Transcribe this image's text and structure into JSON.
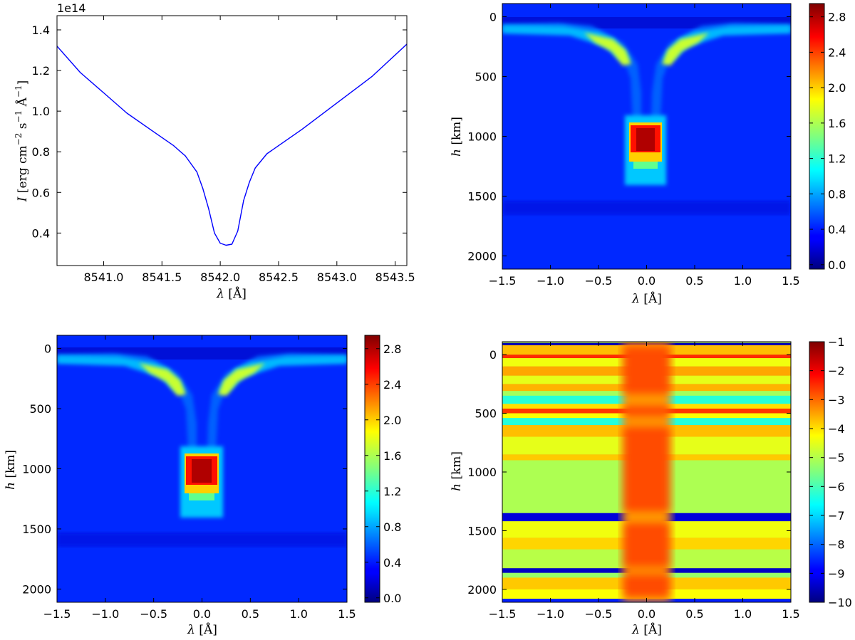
{
  "chart_data": [
    {
      "type": "line",
      "panel": "top-left",
      "title": "",
      "offset_label": "1e14",
      "xlabel": {
        "sym": "λ",
        "unit": " [Å]"
      },
      "ylabel": {
        "sym": "I",
        "pre": " [erg cm",
        "e1": "−2",
        "mid1": " s",
        "e2": "−1",
        "mid2": " Å",
        "e3": "−1",
        "post": "]"
      },
      "xlim": [
        8540.6,
        8543.6
      ],
      "ylim": [
        0.24,
        1.47
      ],
      "xticks": [
        "8541.0",
        "8541.5",
        "8542.0",
        "8542.5",
        "8543.0",
        "8543.5"
      ],
      "xtick_values": [
        8541.0,
        8541.5,
        8542.0,
        8542.5,
        8543.0,
        8543.5
      ],
      "yticks": [
        "0.4",
        "0.6",
        "0.8",
        "1.0",
        "1.2",
        "1.4"
      ],
      "ytick_values": [
        0.4,
        0.6,
        0.8,
        1.0,
        1.2,
        1.4
      ],
      "line_color": "#0000ff",
      "series": [
        {
          "name": "intensity",
          "x": [
            8540.6,
            8540.8,
            8541.0,
            8541.2,
            8541.4,
            8541.5,
            8541.6,
            8541.7,
            8541.8,
            8541.85,
            8541.9,
            8541.95,
            8542.0,
            8542.05,
            8542.1,
            8542.15,
            8542.2,
            8542.25,
            8542.3,
            8542.4,
            8542.5,
            8542.7,
            8543.0,
            8543.3,
            8543.6
          ],
          "y": [
            1.32,
            1.19,
            1.09,
            0.99,
            0.91,
            0.87,
            0.83,
            0.78,
            0.7,
            0.62,
            0.52,
            0.4,
            0.35,
            0.34,
            0.345,
            0.41,
            0.56,
            0.65,
            0.72,
            0.79,
            0.83,
            0.91,
            1.04,
            1.17,
            1.33
          ]
        }
      ]
    },
    {
      "type": "heatmap",
      "panel": "top-right",
      "xlabel": {
        "sym": "λ",
        "unit": " [Å]"
      },
      "ylabel": {
        "sym": "h",
        "unit": " [km]"
      },
      "xlim": [
        -1.5,
        1.5
      ],
      "ylim": [
        2110,
        -110
      ],
      "xticks": [
        "−1.5",
        "−1.0",
        "−0.5",
        "0.0",
        "0.5",
        "1.0",
        "1.5"
      ],
      "xtick_values": [
        -1.5,
        -1.0,
        -0.5,
        0.0,
        0.5,
        1.0,
        1.5
      ],
      "yticks": [
        "0",
        "500",
        "1000",
        "1500",
        "2000"
      ],
      "ytick_values": [
        0,
        500,
        1000,
        1500,
        2000
      ],
      "colorbar": {
        "min": -0.05,
        "max": 2.95,
        "ticks": [
          "0.0",
          "0.4",
          "0.8",
          "1.2",
          "1.6",
          "2.0",
          "2.4",
          "2.8"
        ],
        "tick_values": [
          0.0,
          0.4,
          0.8,
          1.2,
          1.6,
          2.0,
          2.4,
          2.8
        ]
      },
      "background_value": 0.25,
      "features": [
        {
          "name": "upper-band",
          "h": 70,
          "h_width": 35,
          "x_from": 0.15,
          "value": 0.8
        },
        {
          "name": "wings-left",
          "x_center": -0.45,
          "h": 220,
          "value": 1.5
        },
        {
          "name": "wings-right",
          "x_center": 0.45,
          "h": 220,
          "value": 1.5
        },
        {
          "name": "core-halo",
          "x": [
            -0.2,
            0.2
          ],
          "h": [
            820,
            1330
          ],
          "value": 1.2
        },
        {
          "name": "core-peak",
          "x": [
            -0.15,
            0.15
          ],
          "h": [
            900,
            1230
          ],
          "value": 2.85
        }
      ]
    },
    {
      "type": "heatmap",
      "panel": "bottom-left",
      "xlabel": {
        "sym": "λ",
        "unit": " [Å]"
      },
      "ylabel": {
        "sym": "h",
        "unit": " [km]"
      },
      "xlim": [
        -1.5,
        1.5
      ],
      "ylim": [
        2110,
        -110
      ],
      "xticks": [
        "−1.5",
        "−1.0",
        "−0.5",
        "0.0",
        "0.5",
        "1.0",
        "1.5"
      ],
      "xtick_values": [
        -1.5,
        -1.0,
        -0.5,
        0.0,
        0.5,
        1.0,
        1.5
      ],
      "yticks": [
        "0",
        "500",
        "1000",
        "1500",
        "2000"
      ],
      "ytick_values": [
        0,
        500,
        1000,
        1500,
        2000
      ],
      "colorbar": {
        "min": -0.05,
        "max": 2.95,
        "ticks": [
          "0.0",
          "0.4",
          "0.8",
          "1.2",
          "1.6",
          "2.0",
          "2.4",
          "2.8"
        ],
        "tick_values": [
          0.0,
          0.4,
          0.8,
          1.2,
          1.6,
          2.0,
          2.4,
          2.8
        ]
      },
      "background_value": 0.25
    },
    {
      "type": "heatmap",
      "panel": "bottom-right",
      "xlabel": {
        "sym": "λ",
        "unit": " [Å]"
      },
      "ylabel": {
        "sym": "h",
        "unit": " [km]"
      },
      "xlim": [
        -1.5,
        1.5
      ],
      "ylim": [
        2110,
        -110
      ],
      "xticks": [
        "−1.5",
        "−1.0",
        "−0.5",
        "0.0",
        "0.5",
        "1.0",
        "1.5"
      ],
      "xtick_values": [
        -1.5,
        -1.0,
        -0.5,
        0.0,
        0.5,
        1.0,
        1.5
      ],
      "yticks": [
        "0",
        "500",
        "1000",
        "1500",
        "2000"
      ],
      "ytick_values": [
        0,
        500,
        1000,
        1500,
        2000
      ],
      "colorbar": {
        "min": -10,
        "max": -1,
        "ticks": [
          "−1",
          "−2",
          "−3",
          "−4",
          "−5",
          "−6",
          "−7",
          "−8",
          "−9",
          "−10"
        ],
        "tick_values": [
          -1,
          -2,
          -3,
          -4,
          -5,
          -6,
          -7,
          -8,
          -9,
          -10
        ]
      },
      "background_value": -5.0,
      "core": {
        "x": [
          -0.25,
          0.25
        ],
        "value": -2.8
      },
      "bands": [
        {
          "h": [
            -100,
            -80
          ],
          "value": -9.5
        },
        {
          "h": [
            -80,
            0
          ],
          "value": -3.8
        },
        {
          "h": [
            0,
            30
          ],
          "value": -2.5
        },
        {
          "h": [
            30,
            100
          ],
          "value": -4.5
        },
        {
          "h": [
            100,
            180
          ],
          "value": -3.6
        },
        {
          "h": [
            180,
            250
          ],
          "value": -4.6
        },
        {
          "h": [
            250,
            310
          ],
          "value": -3.7
        },
        {
          "h": [
            310,
            350
          ],
          "value": -5.2
        },
        {
          "h": [
            350,
            420
          ],
          "value": -6.3
        },
        {
          "h": [
            420,
            460
          ],
          "value": -4.1
        },
        {
          "h": [
            460,
            500
          ],
          "value": -2.6
        },
        {
          "h": [
            500,
            540
          ],
          "value": -4.4
        },
        {
          "h": [
            540,
            600
          ],
          "value": -6.3
        },
        {
          "h": [
            600,
            700
          ],
          "value": -3.8
        },
        {
          "h": [
            700,
            850
          ],
          "value": -4.6
        },
        {
          "h": [
            850,
            900
          ],
          "value": -3.9
        },
        {
          "h": [
            900,
            1350
          ],
          "value": -5.1
        },
        {
          "h": [
            1350,
            1420
          ],
          "value": -9.2
        },
        {
          "h": [
            1420,
            1560
          ],
          "value": -4.5
        },
        {
          "h": [
            1560,
            1660
          ],
          "value": -4.0
        },
        {
          "h": [
            1660,
            1820
          ],
          "value": -5.0
        },
        {
          "h": [
            1820,
            1860
          ],
          "value": -9.4
        },
        {
          "h": [
            1860,
            1900
          ],
          "value": -5.3
        },
        {
          "h": [
            1900,
            2000
          ],
          "value": -3.9
        },
        {
          "h": [
            2000,
            2080
          ],
          "value": -4.4
        },
        {
          "h": [
            2080,
            2110
          ],
          "value": -8.6
        }
      ]
    }
  ]
}
